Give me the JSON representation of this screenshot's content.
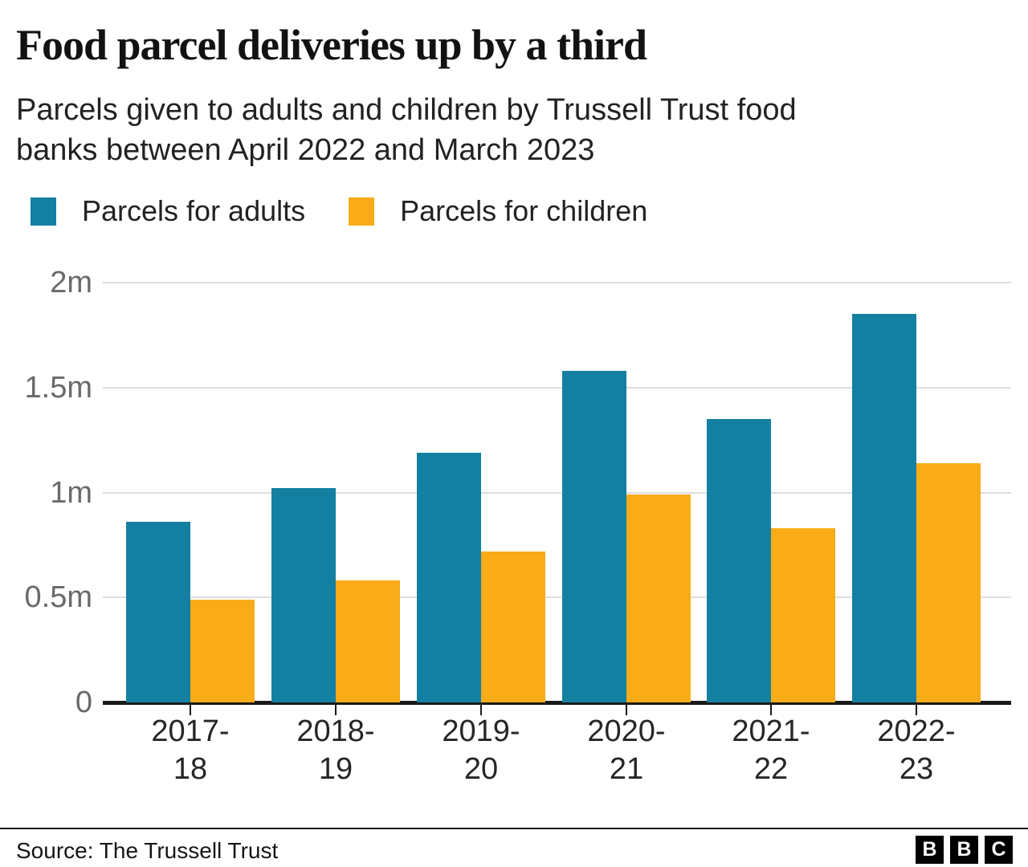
{
  "header": {
    "title": "Food parcel deliveries up by a third",
    "subtitle": "Parcels given to adults and children by Trussell Trust food\nbanks between April 2022 and March 2023"
  },
  "legend": [
    {
      "label": "Parcels for adults",
      "color": "#1380a1"
    },
    {
      "label": "Parcels for children",
      "color": "#faab18"
    }
  ],
  "chart_data": {
    "type": "bar",
    "title": "Food parcel deliveries up by a third",
    "subtitle": "Parcels given to adults and children by Trussell Trust food banks between April 2022 and March 2023",
    "unit": "millions of parcels",
    "categories": [
      "2017-18",
      "2018-19",
      "2019-20",
      "2020-21",
      "2021-22",
      "2022-23"
    ],
    "category_lines": [
      [
        "2017-",
        "18"
      ],
      [
        "2018-",
        "19"
      ],
      [
        "2019-",
        "20"
      ],
      [
        "2020-",
        "21"
      ],
      [
        "2021-",
        "22"
      ],
      [
        "2022-",
        "23"
      ]
    ],
    "series": [
      {
        "name": "Parcels for adults",
        "color": "#1380a1",
        "values": [
          0.86,
          1.02,
          1.19,
          1.58,
          1.35,
          1.85
        ]
      },
      {
        "name": "Parcels for children",
        "color": "#faab18",
        "values": [
          0.49,
          0.58,
          0.72,
          0.99,
          0.83,
          1.14
        ]
      }
    ],
    "ylim": [
      0,
      2
    ],
    "y_ticks": [
      {
        "label": "2m",
        "value": 2.0
      },
      {
        "label": "1.5m",
        "value": 1.5
      },
      {
        "label": "1m",
        "value": 1.0
      },
      {
        "label": "0.5m",
        "value": 0.5
      },
      {
        "label": "0",
        "value": 0.0
      }
    ],
    "grid": true,
    "legend_position": "top"
  },
  "colors": {
    "adults": "#1380a1",
    "children": "#faab18",
    "gridline": "#dedede",
    "axis": "#1a1a1a",
    "y_label_text": "#6a6a6a",
    "x_label_text": "#262626",
    "background": "#ffffff"
  },
  "footer": {
    "source": "Source: The Trussell Trust",
    "logo_letters": [
      "B",
      "B",
      "C"
    ]
  }
}
